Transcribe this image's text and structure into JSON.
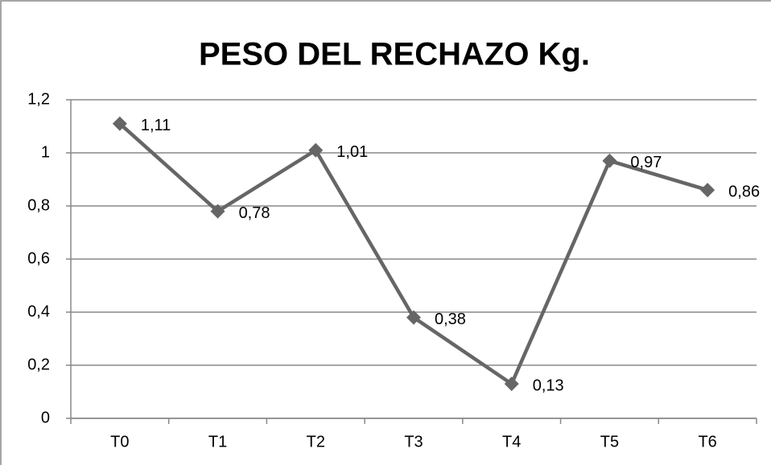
{
  "chart_data": {
    "type": "line",
    "title": "PESO DEL RECHAZO Kg.",
    "categories": [
      "T0",
      "T1",
      "T2",
      "T3",
      "T4",
      "T5",
      "T6"
    ],
    "values": [
      1.11,
      0.78,
      1.01,
      0.38,
      0.13,
      0.97,
      0.86
    ],
    "value_labels": [
      "1,11",
      "0,78",
      "1,01",
      "0,38",
      "0,13",
      "0,97",
      "0,86"
    ],
    "color": "#666666",
    "ylim": [
      0,
      1.2
    ],
    "yticks": [
      0,
      {
        "value": 0.2,
        "label": "0,2"
      },
      {
        "value": 0.4,
        "label": "0,4"
      },
      {
        "value": 0.6,
        "label": "0,6"
      },
      {
        "value": 0.8,
        "label": "0,8"
      },
      1,
      {
        "value": 1.2,
        "label": "1,2"
      }
    ],
    "grid": true
  }
}
